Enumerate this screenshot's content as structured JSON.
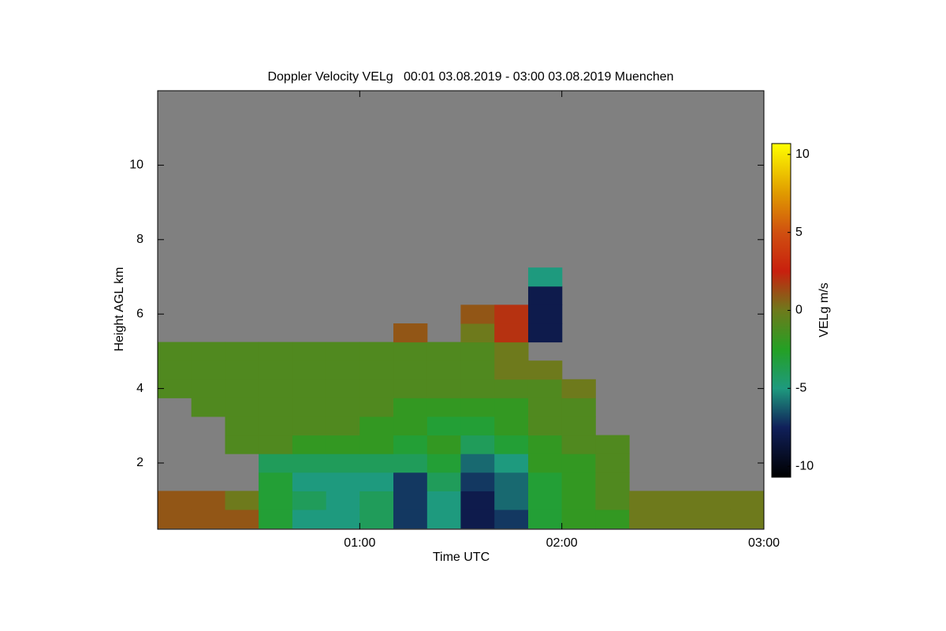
{
  "chart_data": {
    "type": "heatmap",
    "title": "Doppler Velocity VELg   00:01 03.08.2019 - 03:00 03.08.2019 Muenchen",
    "xlabel": "Time UTC",
    "ylabel": "Height AGL km",
    "colorbar_label": "VELg m/s",
    "xlim": [
      0,
      3
    ],
    "xticks": [
      {
        "value": 1,
        "label": "01:00"
      },
      {
        "value": 2,
        "label": "02:00"
      },
      {
        "value": 3,
        "label": "03:00"
      }
    ],
    "ylim": [
      0.22,
      12
    ],
    "yticks": [
      2,
      4,
      6,
      8,
      10
    ],
    "clim": [
      -10.7,
      10.7
    ],
    "cticks": [
      10,
      5,
      0,
      -5,
      -10
    ],
    "background": "#808080",
    "colorscale": [
      [
        -10.7,
        "#000000"
      ],
      [
        -7.5,
        "#10205a"
      ],
      [
        -5,
        "#1e9a7e"
      ],
      [
        -2.5,
        "#24a024"
      ],
      [
        0,
        "#6e7a1c"
      ],
      [
        2.5,
        "#c8200e"
      ],
      [
        5,
        "#d05010"
      ],
      [
        7.5,
        "#e09a00"
      ],
      [
        10.7,
        "#ffff00"
      ]
    ],
    "x": [
      0.083,
      0.25,
      0.417,
      0.583,
      0.75,
      0.917,
      1.083,
      1.25,
      1.417,
      1.583,
      1.75,
      1.917,
      2.083,
      2.25,
      2.417,
      2.583,
      2.75,
      2.917
    ],
    "y": [
      0.5,
      1,
      1.5,
      2,
      2.5,
      3,
      3.5,
      4,
      4.5,
      5,
      5.5,
      6,
      6.5,
      7
    ],
    "z": [
      [
        1,
        1,
        1,
        -3,
        -5,
        -5,
        -4,
        -7,
        -5,
        -8,
        -7,
        -3,
        -2,
        -2,
        0,
        0,
        0,
        0
      ],
      [
        1,
        1,
        0,
        -3,
        -4,
        -5,
        -4,
        -7,
        -5,
        -8,
        -6,
        -3,
        -2,
        -1,
        0,
        0,
        0,
        0
      ],
      [
        null,
        null,
        null,
        -3,
        -5,
        -5,
        -5,
        -7,
        -4,
        -7,
        -6,
        -3,
        -2,
        -1,
        null,
        null,
        null,
        null
      ],
      [
        null,
        null,
        null,
        -4,
        -4,
        -4,
        -4,
        -4,
        -3,
        -6,
        -5,
        -2,
        -2,
        -1,
        null,
        null,
        null,
        null
      ],
      [
        null,
        null,
        -1,
        -1,
        -2,
        -2,
        -2,
        -3,
        -2,
        -4,
        -3,
        -2,
        -1,
        -1,
        null,
        null,
        null,
        null
      ],
      [
        null,
        null,
        -1,
        -1,
        -1,
        -1,
        -2,
        -2,
        -3,
        -3,
        -2,
        -1,
        -1,
        null,
        null,
        null,
        null,
        null
      ],
      [
        null,
        -1,
        -1,
        -1,
        -1,
        -1,
        -1,
        -2,
        -2,
        -2,
        -2,
        -1,
        -1,
        null,
        null,
        null,
        null,
        null
      ],
      [
        -1,
        -1,
        -1,
        -1,
        -1,
        -1,
        -1,
        -1,
        -1,
        -1,
        -1,
        -1,
        0,
        null,
        null,
        null,
        null,
        null
      ],
      [
        -1,
        -1,
        -1,
        -1,
        -1,
        -1,
        -1,
        -1,
        -1,
        -1,
        0,
        0,
        null,
        null,
        null,
        null,
        null,
        null
      ],
      [
        -1,
        -1,
        -1,
        -1,
        -1,
        -1,
        -1,
        -1,
        -1,
        -1,
        0,
        null,
        null,
        null,
        null,
        null,
        null,
        null
      ],
      [
        null,
        null,
        null,
        null,
        null,
        null,
        null,
        1,
        null,
        0,
        2,
        -8,
        null,
        null,
        null,
        null,
        null,
        null
      ],
      [
        null,
        null,
        null,
        null,
        null,
        null,
        null,
        null,
        null,
        1,
        2,
        -8,
        null,
        null,
        null,
        null,
        null,
        null
      ],
      [
        null,
        null,
        null,
        null,
        null,
        null,
        null,
        null,
        null,
        null,
        null,
        -8,
        null,
        null,
        null,
        null,
        null,
        null
      ],
      [
        null,
        null,
        null,
        null,
        null,
        null,
        null,
        null,
        null,
        null,
        null,
        -5,
        null,
        null,
        null,
        null,
        null,
        null
      ]
    ]
  }
}
